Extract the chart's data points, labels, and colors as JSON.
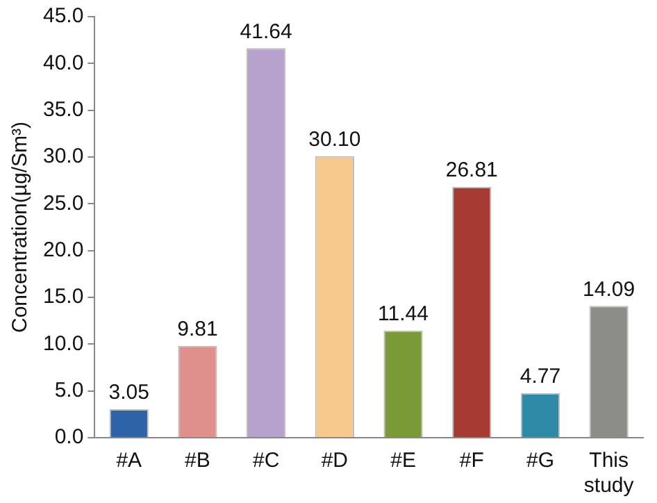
{
  "chart_data": {
    "type": "bar",
    "ylabel": "Concentration(µg/Sm³)",
    "categories": [
      "#A",
      "#B",
      "#C",
      "#D",
      "#E",
      "#F",
      "#G",
      "This study"
    ],
    "values": [
      3.05,
      9.81,
      41.64,
      30.1,
      11.44,
      26.81,
      4.77,
      14.09
    ],
    "colors": [
      "#2e63a8",
      "#e0908c",
      "#b6a2cc",
      "#f7c98c",
      "#7a9a38",
      "#a83a34",
      "#2f8aa8",
      "#8c8c88"
    ],
    "value_labels": [
      "3.05",
      "9.81",
      "41.64",
      "30.10",
      "11.44",
      "26.81",
      "4.77",
      "14.09"
    ],
    "ylim": [
      0,
      45
    ],
    "yticks": [
      {
        "value": 0,
        "label": "0.0"
      },
      {
        "value": 5,
        "label": "5.0"
      },
      {
        "value": 10,
        "label": "10.0"
      },
      {
        "value": 15,
        "label": "15.0"
      },
      {
        "value": 20,
        "label": "20.0"
      },
      {
        "value": 25,
        "label": "25.0"
      },
      {
        "value": 30,
        "label": "30.0"
      },
      {
        "value": 35,
        "label": "35.0"
      },
      {
        "value": 40,
        "label": "40.0"
      },
      {
        "value": 45,
        "label": "45.0"
      }
    ],
    "grid": false,
    "legend": false
  }
}
